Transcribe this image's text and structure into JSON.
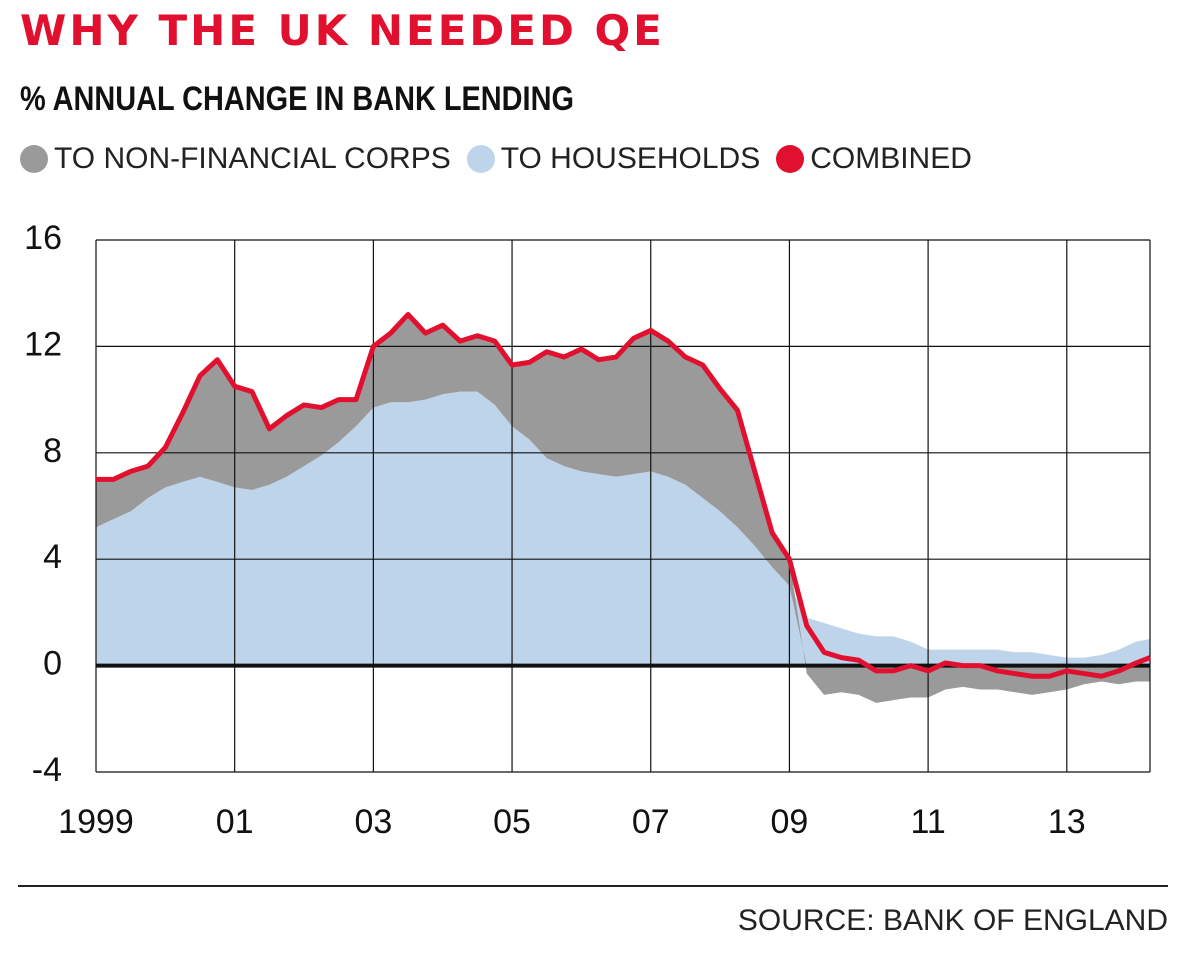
{
  "chart_data": {
    "type": "area-line",
    "title": "WHY THE UK NEEDED QE",
    "subtitle": "% ANNUAL CHANGE IN BANK LENDING",
    "source": "SOURCE: BANK OF ENGLAND",
    "x": [
      1999,
      1999.25,
      1999.5,
      1999.75,
      2000,
      2000.25,
      2000.5,
      2000.75,
      2001,
      2001.25,
      2001.5,
      2001.75,
      2002,
      2002.25,
      2002.5,
      2002.75,
      2003,
      2003.25,
      2003.5,
      2003.75,
      2004,
      2004.25,
      2004.5,
      2004.75,
      2005,
      2005.25,
      2005.5,
      2005.75,
      2006,
      2006.25,
      2006.5,
      2006.75,
      2007,
      2007.25,
      2007.5,
      2007.75,
      2008,
      2008.25,
      2008.5,
      2008.75,
      2009,
      2009.25,
      2009.5,
      2009.75,
      2010,
      2010.25,
      2010.5,
      2010.75,
      2011,
      2011.25,
      2011.5,
      2011.75,
      2012,
      2012.25,
      2012.5,
      2012.75,
      2013,
      2013.25,
      2013.5,
      2013.75,
      2014,
      2014.2
    ],
    "series": [
      {
        "name": "TO NON-FINANCIAL CORPS",
        "color": "#9b9a9b",
        "kind": "stacked-area",
        "values": [
          1.8,
          1.5,
          1.5,
          1.2,
          1.5,
          2.6,
          3.8,
          4.6,
          3.8,
          3.7,
          2.1,
          2.3,
          2.3,
          1.8,
          1.6,
          1.0,
          2.3,
          2.6,
          3.3,
          2.5,
          2.6,
          1.9,
          2.1,
          2.4,
          2.3,
          2.9,
          4.0,
          4.1,
          4.6,
          4.3,
          4.5,
          5.1,
          5.3,
          5.1,
          4.8,
          5.0,
          4.6,
          4.4,
          2.8,
          1.3,
          1.0,
          -0.3,
          -1.1,
          -1.0,
          -1.1,
          -1.4,
          -1.3,
          -1.2,
          -1.2,
          -0.9,
          -0.8,
          -0.9,
          -0.9,
          -1.0,
          -1.1,
          -1.0,
          -0.9,
          -0.7,
          -0.6,
          -0.7,
          -0.6,
          -0.6
        ]
      },
      {
        "name": "TO HOUSEHOLDS",
        "color": "#bdd4eb",
        "kind": "area",
        "values": [
          5.2,
          5.5,
          5.8,
          6.3,
          6.7,
          6.9,
          7.1,
          6.9,
          6.7,
          6.6,
          6.8,
          7.1,
          7.5,
          7.9,
          8.4,
          9.0,
          9.7,
          9.9,
          9.9,
          10.0,
          10.2,
          10.3,
          10.3,
          9.8,
          9.0,
          8.5,
          7.8,
          7.5,
          7.3,
          7.2,
          7.1,
          7.2,
          7.3,
          7.1,
          6.8,
          6.3,
          5.8,
          5.2,
          4.5,
          3.7,
          3.0,
          1.8,
          1.6,
          1.4,
          1.2,
          1.1,
          1.1,
          0.9,
          0.6,
          0.6,
          0.6,
          0.6,
          0.6,
          0.5,
          0.5,
          0.4,
          0.3,
          0.3,
          0.4,
          0.6,
          0.9,
          1.0
        ]
      },
      {
        "name": "COMBINED",
        "color": "#e2102f",
        "kind": "line",
        "values": [
          7.0,
          7.0,
          7.3,
          7.5,
          8.2,
          9.5,
          10.9,
          11.5,
          10.5,
          10.3,
          8.9,
          9.4,
          9.8,
          9.7,
          10.0,
          10.0,
          12.0,
          12.5,
          13.2,
          12.5,
          12.8,
          12.2,
          12.4,
          12.2,
          11.3,
          11.4,
          11.8,
          11.6,
          11.9,
          11.5,
          11.6,
          12.3,
          12.6,
          12.2,
          11.6,
          11.3,
          10.4,
          9.6,
          7.3,
          5.0,
          4.0,
          1.5,
          0.5,
          0.3,
          0.2,
          -0.2,
          -0.2,
          0.0,
          -0.2,
          0.1,
          0.0,
          0.0,
          -0.2,
          -0.3,
          -0.4,
          -0.4,
          -0.2,
          -0.3,
          -0.4,
          -0.2,
          0.1,
          0.3
        ]
      }
    ],
    "xlim": [
      1999,
      2014.2
    ],
    "xticks": [
      {
        "value": 1999,
        "label": "1999"
      },
      {
        "value": 2001,
        "label": "01"
      },
      {
        "value": 2003,
        "label": "03"
      },
      {
        "value": 2005,
        "label": "05"
      },
      {
        "value": 2007,
        "label": "07"
      },
      {
        "value": 2009,
        "label": "09"
      },
      {
        "value": 2011,
        "label": "11"
      },
      {
        "value": 2013,
        "label": "13"
      }
    ],
    "ylim": [
      -4,
      16
    ],
    "yticks": [
      -4,
      0,
      4,
      8,
      12,
      16
    ],
    "grid": true
  }
}
